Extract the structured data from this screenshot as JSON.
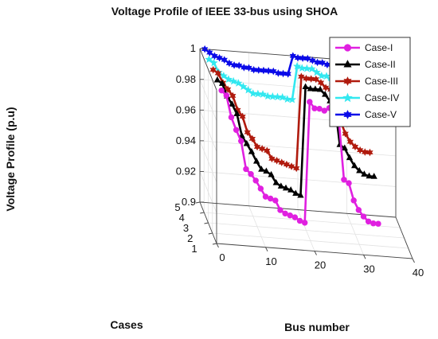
{
  "chart_data": {
    "type": "line",
    "projection": "3d",
    "title": "Voltage Profile of IEEE 33-bus using SHOA",
    "xlabel": "Bus number",
    "ylabel": "Cases",
    "zlabel": "Voltage Profile (p.u)",
    "xlim": [
      0,
      40
    ],
    "ylim": [
      1,
      5
    ],
    "zlim": [
      0.9,
      1.0
    ],
    "x_ticks": [
      0,
      10,
      20,
      30,
      40
    ],
    "y_ticks": [
      1,
      2,
      3,
      4,
      5
    ],
    "z_ticks": [
      0.9,
      0.92,
      0.94,
      0.96,
      0.98,
      1
    ],
    "z_tick_labels": [
      "0.9",
      "0.92",
      "0.94",
      "0.96",
      "0.98",
      "1"
    ],
    "grid": true,
    "legend_position": "top-right",
    "x": [
      1,
      2,
      3,
      4,
      5,
      6,
      7,
      8,
      9,
      10,
      11,
      12,
      13,
      14,
      15,
      16,
      17,
      18,
      19,
      20,
      21,
      22,
      23,
      24,
      25,
      26,
      27,
      28,
      29,
      30,
      31,
      32,
      33
    ],
    "series": [
      {
        "name": "Case-I",
        "case": 1,
        "color": "#e020e0",
        "marker": "circle",
        "values": [
          1.0,
          0.997,
          0.983,
          0.975,
          0.968,
          0.95,
          0.947,
          0.943,
          0.938,
          0.933,
          0.932,
          0.931,
          0.925,
          0.923,
          0.922,
          0.921,
          0.919,
          0.918,
          0.997,
          0.993,
          0.993,
          0.992,
          0.994,
          0.988,
          0.985,
          0.948,
          0.946,
          0.935,
          0.929,
          0.925,
          0.922,
          0.921,
          0.921
        ]
      },
      {
        "name": "Case-II",
        "case": 2,
        "color": "#000000",
        "marker": "triangle",
        "values": [
          1.0,
          0.998,
          0.99,
          0.985,
          0.979,
          0.965,
          0.96,
          0.955,
          0.949,
          0.944,
          0.943,
          0.941,
          0.936,
          0.934,
          0.933,
          0.932,
          0.93,
          0.929,
          1.0,
          0.999,
          0.999,
          0.999,
          0.996,
          0.992,
          0.99,
          0.964,
          0.962,
          0.956,
          0.951,
          0.948,
          0.946,
          0.945,
          0.945
        ]
      },
      {
        "name": "Case-III",
        "case": 3,
        "color": "#b01b0e",
        "marker": "hexagram",
        "values": [
          1.0,
          0.998,
          0.992,
          0.988,
          0.984,
          0.975,
          0.971,
          0.961,
          0.957,
          0.952,
          0.951,
          0.95,
          0.945,
          0.944,
          0.943,
          0.942,
          0.941,
          0.94,
          1.0,
          0.999,
          0.999,
          0.999,
          0.997,
          0.994,
          0.993,
          0.975,
          0.973,
          0.965,
          0.96,
          0.957,
          0.955,
          0.954,
          0.954
        ]
      },
      {
        "name": "Case-IV",
        "case": 4,
        "color": "#33e8f0",
        "marker": "pentagram",
        "values": [
          1.0,
          0.998,
          0.992,
          0.99,
          0.988,
          0.987,
          0.986,
          0.984,
          0.982,
          0.98,
          0.98,
          0.98,
          0.979,
          0.979,
          0.979,
          0.979,
          0.978,
          0.978,
          1.0,
          0.999,
          0.999,
          0.999,
          0.997,
          0.995,
          0.995,
          0.992,
          0.992,
          0.99,
          0.988,
          0.987,
          0.986,
          0.986,
          0.986
        ]
      },
      {
        "name": "Case-V",
        "case": 5,
        "color": "#0a0ae8",
        "marker": "hexagram",
        "values": [
          1.0,
          0.998,
          0.996,
          0.995,
          0.994,
          0.992,
          0.991,
          0.991,
          0.99,
          0.99,
          0.989,
          0.989,
          0.989,
          0.989,
          0.989,
          0.988,
          0.988,
          0.988,
          1.0,
          0.999,
          0.999,
          0.999,
          0.998,
          0.997,
          0.997,
          0.996,
          0.996,
          0.994,
          0.993,
          0.992,
          0.991,
          0.99,
          0.99
        ]
      }
    ]
  }
}
